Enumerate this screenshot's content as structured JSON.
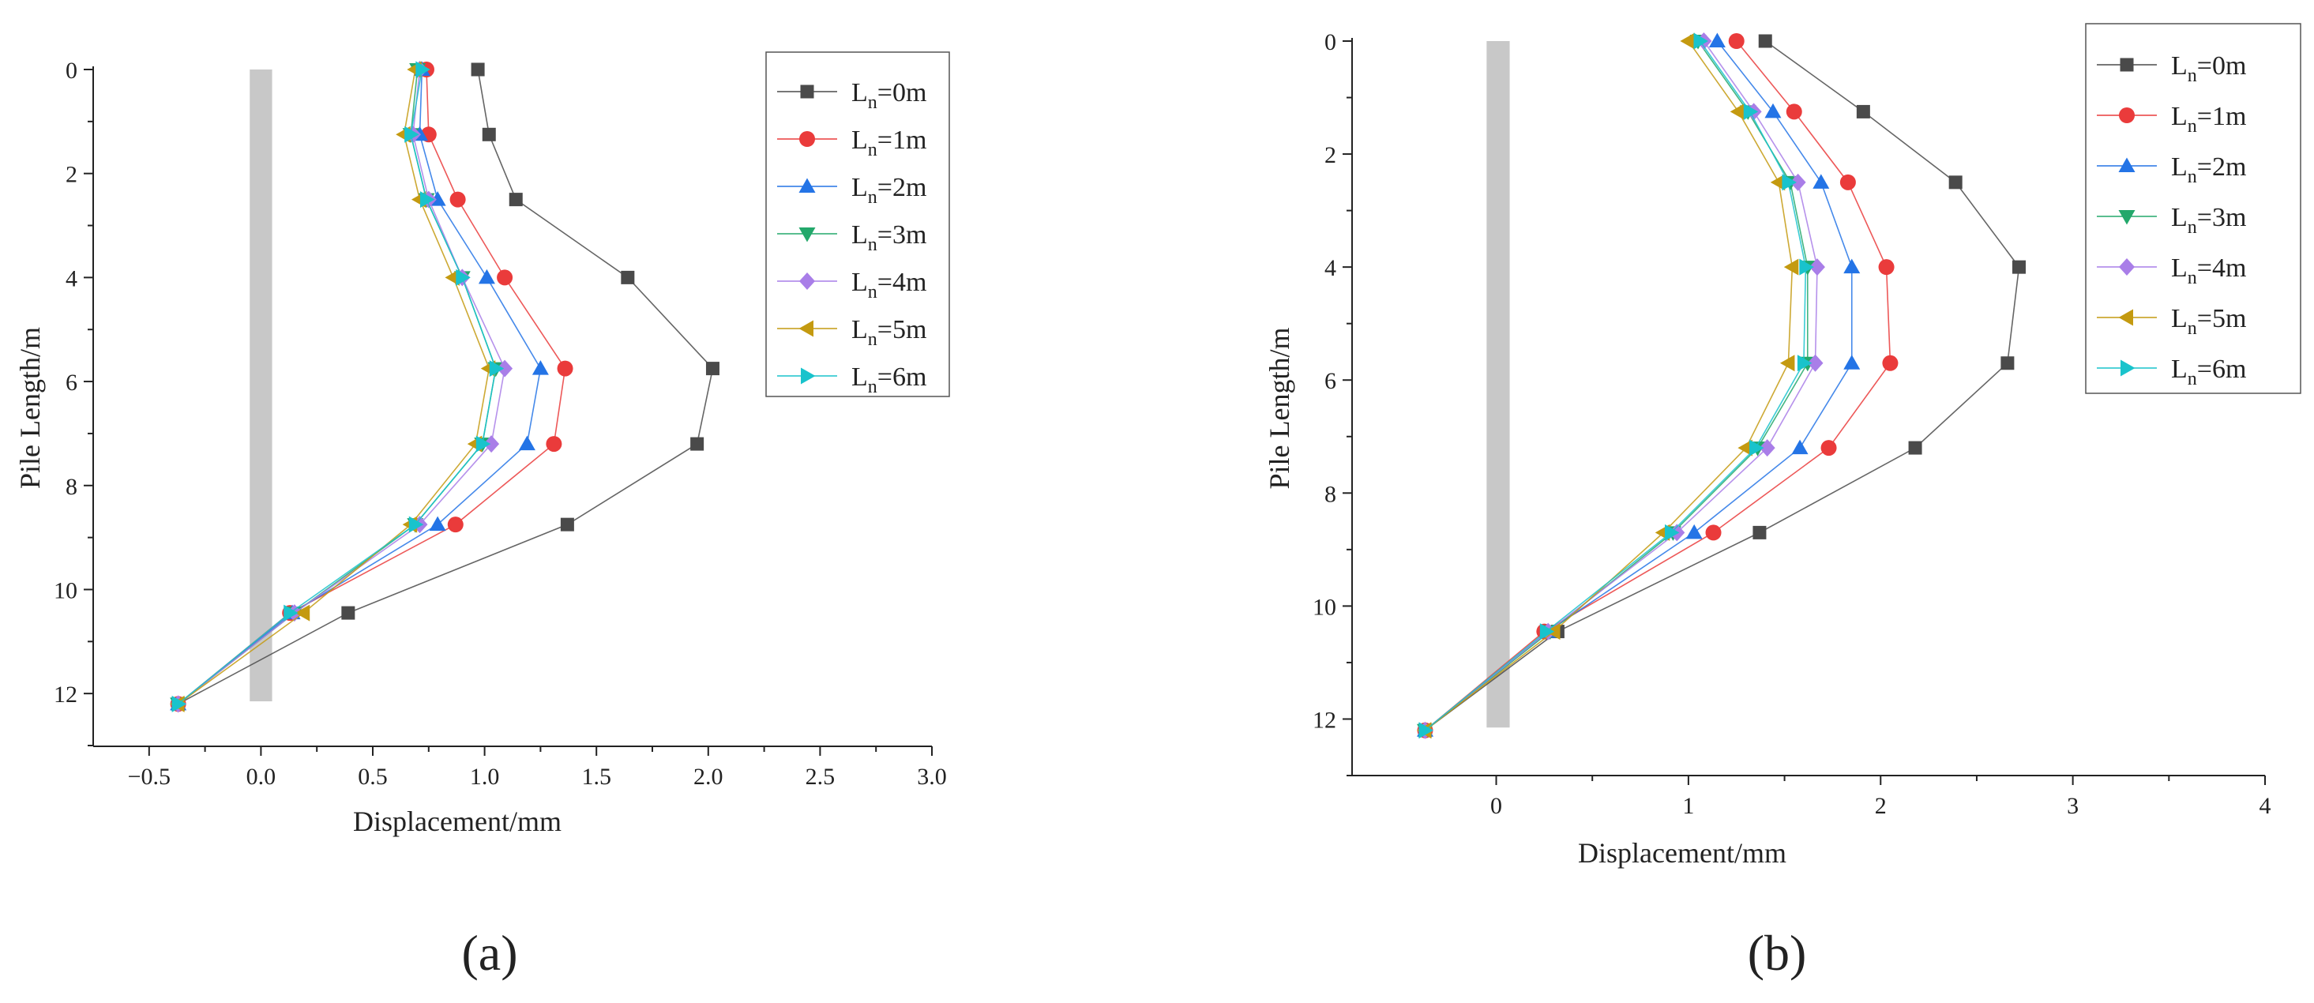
{
  "colors": {
    "L0": "#4a4a4a",
    "L1": "#ea3b3b",
    "L2": "#2474e6",
    "L3": "#23a86b",
    "L4": "#a97ee8",
    "L5": "#c49a10",
    "L6": "#19c3cc",
    "pile": "#c8c8c8",
    "axis": "#222222"
  },
  "chart_data": [
    {
      "type": "line",
      "panel_label": "(a)",
      "xlabel": "Displacement/mm",
      "ylabel": "Pile Length/m",
      "xlim": [
        -0.75,
        3.0
      ],
      "ylim": [
        0,
        13
      ],
      "y_inverted": true,
      "x_ticks": [
        -0.5,
        0.0,
        0.5,
        1.0,
        1.5,
        2.0,
        2.5,
        3.0
      ],
      "x_tick_labels": [
        "−0.5",
        "0.0",
        "0.5",
        "1.0",
        "1.5",
        "2.0",
        "2.5",
        "3.0"
      ],
      "y_ticks": [
        0,
        2,
        4,
        6,
        8,
        10,
        12
      ],
      "y_tick_labels": [
        "0",
        "2",
        "4",
        "6",
        "8",
        "10",
        "12"
      ],
      "pile_band": {
        "x": [
          -0.05,
          0.05
        ],
        "y": [
          0,
          12.15
        ]
      },
      "legend_position": "top-right",
      "depths": [
        0,
        1.25,
        2.5,
        4.0,
        5.75,
        7.2,
        8.75,
        10.45,
        12.2
      ],
      "series": [
        {
          "name": "L",
          "sub": "n",
          "suffix": "=0m",
          "marker": "square",
          "color_key": "L0",
          "x": [
            0.97,
            1.02,
            1.14,
            1.64,
            2.02,
            1.95,
            1.37,
            0.39,
            -0.37
          ]
        },
        {
          "name": "L",
          "sub": "n",
          "suffix": "=1m",
          "marker": "circle",
          "color_key": "L1",
          "x": [
            0.74,
            0.75,
            0.88,
            1.09,
            1.36,
            1.31,
            0.87,
            0.13,
            -0.37
          ]
        },
        {
          "name": "L",
          "sub": "n",
          "suffix": "=2m",
          "marker": "triangle-up",
          "color_key": "L2",
          "x": [
            0.72,
            0.71,
            0.79,
            1.01,
            1.25,
            1.19,
            0.79,
            0.14,
            -0.37
          ]
        },
        {
          "name": "L",
          "sub": "n",
          "suffix": "=3m",
          "marker": "triangle-down",
          "color_key": "L3",
          "x": [
            0.7,
            0.67,
            0.74,
            0.9,
            1.05,
            0.99,
            0.69,
            0.15,
            -0.37
          ]
        },
        {
          "name": "L",
          "sub": "n",
          "suffix": "=4m",
          "marker": "diamond",
          "color_key": "L4",
          "x": [
            0.71,
            0.68,
            0.75,
            0.9,
            1.09,
            1.03,
            0.71,
            0.15,
            -0.37
          ]
        },
        {
          "name": "L",
          "sub": "n",
          "suffix": "=5m",
          "marker": "triangle-left",
          "color_key": "L5",
          "x": [
            0.69,
            0.64,
            0.71,
            0.86,
            1.02,
            0.96,
            0.67,
            0.19,
            -0.37
          ]
        },
        {
          "name": "L",
          "sub": "n",
          "suffix": "=6m",
          "marker": "triangle-right",
          "color_key": "L6",
          "x": [
            0.72,
            0.67,
            0.74,
            0.9,
            1.05,
            0.99,
            0.69,
            0.13,
            -0.37
          ]
        }
      ]
    },
    {
      "type": "line",
      "panel_label": "(b)",
      "xlabel": "Displacement/mm",
      "ylabel": "Pile Length/m",
      "xlim": [
        -0.75,
        4.0
      ],
      "ylim": [
        0,
        13
      ],
      "y_inverted": true,
      "x_ticks": [
        0,
        1,
        2,
        3,
        4
      ],
      "x_tick_labels": [
        "0",
        "1",
        "2",
        "3",
        "4"
      ],
      "y_ticks": [
        0,
        2,
        4,
        6,
        8,
        10,
        12
      ],
      "y_tick_labels": [
        "0",
        "2",
        "4",
        "6",
        "8",
        "10",
        "12"
      ],
      "pile_band": {
        "x": [
          -0.05,
          0.07
        ],
        "y": [
          0,
          12.15
        ]
      },
      "legend_position": "top-right",
      "depths": [
        0,
        1.25,
        2.5,
        4.0,
        5.7,
        7.2,
        8.7,
        10.45,
        12.2
      ],
      "series": [
        {
          "name": "L",
          "sub": "n",
          "suffix": "=0m",
          "marker": "square",
          "color_key": "L0",
          "x": [
            1.4,
            1.91,
            2.39,
            2.72,
            2.66,
            2.18,
            1.37,
            0.32,
            -0.37
          ]
        },
        {
          "name": "L",
          "sub": "n",
          "suffix": "=1m",
          "marker": "circle",
          "color_key": "L1",
          "x": [
            1.25,
            1.55,
            1.83,
            2.03,
            2.05,
            1.73,
            1.13,
            0.25,
            -0.37
          ]
        },
        {
          "name": "L",
          "sub": "n",
          "suffix": "=2m",
          "marker": "triangle-up",
          "color_key": "L2",
          "x": [
            1.15,
            1.44,
            1.69,
            1.85,
            1.85,
            1.58,
            1.03,
            0.27,
            -0.37
          ]
        },
        {
          "name": "L",
          "sub": "n",
          "suffix": "=3m",
          "marker": "triangle-down",
          "color_key": "L3",
          "x": [
            1.05,
            1.31,
            1.53,
            1.62,
            1.62,
            1.36,
            0.92,
            0.28,
            -0.37
          ]
        },
        {
          "name": "L",
          "sub": "n",
          "suffix": "=4m",
          "marker": "diamond",
          "color_key": "L4",
          "x": [
            1.08,
            1.34,
            1.57,
            1.67,
            1.66,
            1.41,
            0.94,
            0.27,
            -0.37
          ]
        },
        {
          "name": "L",
          "sub": "n",
          "suffix": "=5m",
          "marker": "triangle-left",
          "color_key": "L5",
          "x": [
            1.0,
            1.26,
            1.47,
            1.54,
            1.52,
            1.3,
            0.87,
            0.3,
            -0.37
          ]
        },
        {
          "name": "L",
          "sub": "n",
          "suffix": "=6m",
          "marker": "triangle-right",
          "color_key": "L6",
          "x": [
            1.06,
            1.32,
            1.52,
            1.61,
            1.6,
            1.35,
            0.91,
            0.26,
            -0.37
          ]
        }
      ]
    }
  ]
}
